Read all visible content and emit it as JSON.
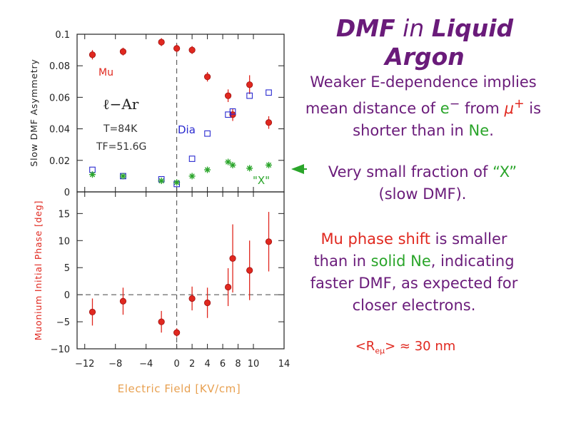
{
  "title": {
    "part1": "DMF",
    "part2": " in ",
    "part3": "Liquid Argon"
  },
  "text_blocks": {
    "weaker": {
      "a": "Weaker ",
      "b": "E",
      "c": "-dependence implies mean distance of ",
      "d": "e",
      "d_sup": "−",
      "e": " from ",
      "f": "μ",
      "f_sup": "+",
      "g": " is shorter than in ",
      "h": "Ne",
      "i": "."
    },
    "fraction": {
      "a": "Very small fraction of ",
      "b": "“X”",
      "c": " (slow DMF)."
    },
    "phase": {
      "a": "Mu phase shift",
      "b": " is smaller than in ",
      "c": "solid Ne",
      "d": ", indicating faster DMF, as expected for closer electrons."
    },
    "radius": {
      "a": "<R",
      "sub": "eμ",
      "b": "> ≈ 30 nm"
    }
  },
  "colors": {
    "purple": "#6a1b7a",
    "red": "#e0281f",
    "green": "#2aa52a",
    "blue": "#2b2bd0",
    "orange": "#e8a050",
    "axis": "#222222"
  },
  "chart_data": [
    {
      "type": "scatter",
      "ylabel": "Slow DMF Asymmetry",
      "ylim": [
        0,
        0.1
      ],
      "y_ticks": [
        0,
        0.02,
        0.04,
        0.06,
        0.08,
        0.1
      ],
      "y_tick_labels": [
        "0",
        "0.02",
        "0.04",
        "0.06",
        "0.08",
        "0.1"
      ],
      "annotations": [
        "ℓ−Ar",
        "T=84K",
        "TF=51.6G"
      ],
      "series": [
        {
          "name": "Mu",
          "marker": "filled-circle",
          "color": "#e0281f",
          "x": [
            -11,
            -7,
            -2,
            0,
            2,
            4,
            6.7,
            7.3,
            9.5,
            12
          ],
          "y": [
            0.087,
            0.089,
            0.095,
            0.091,
            0.09,
            0.073,
            0.061,
            0.049,
            0.068,
            0.044
          ],
          "err": [
            0.003,
            0.0025,
            0.0025,
            0.0025,
            0.0025,
            0.003,
            0.004,
            0.004,
            0.006,
            0.004
          ]
        },
        {
          "name": "Dia",
          "marker": "open-square",
          "color": "#2b2bd0",
          "x": [
            -11,
            -7,
            -2,
            0,
            2,
            4,
            6.7,
            7.3,
            9.5,
            12
          ],
          "y": [
            0.014,
            0.01,
            0.008,
            0.005,
            0.021,
            0.037,
            0.049,
            0.051,
            0.061,
            0.063
          ],
          "err": [
            0,
            0,
            0,
            0,
            0,
            0,
            0,
            0,
            0,
            0
          ]
        },
        {
          "name": "\"X\"",
          "marker": "star",
          "color": "#2aa52a",
          "x": [
            -11,
            -7,
            -2,
            0,
            2,
            4,
            6.7,
            7.3,
            9.5,
            12
          ],
          "y": [
            0.011,
            0.01,
            0.007,
            0.006,
            0.01,
            0.014,
            0.019,
            0.017,
            0.015,
            0.017
          ],
          "err": [
            0,
            0,
            0,
            0,
            0,
            0,
            0,
            0,
            0,
            0
          ]
        }
      ]
    },
    {
      "type": "scatter",
      "xlabel": "Electric Field [KV/cm]",
      "ylabel": "Muonium Initial Phase [deg]",
      "xlim": [
        -13,
        14
      ],
      "ylim": [
        -10,
        19
      ],
      "x_ticks": [
        -12,
        -8,
        -4,
        0,
        2,
        4,
        6,
        8,
        10,
        14
      ],
      "x_tick_labels": [
        "−12",
        "−8",
        "−4",
        "0",
        "2",
        "4",
        "6",
        "8",
        "10",
        "14"
      ],
      "y_ticks": [
        -10,
        -5,
        0,
        5,
        10,
        15
      ],
      "y_tick_labels": [
        "−10",
        "−5",
        "0",
        "5",
        "10",
        "15"
      ],
      "series": [
        {
          "marker": "filled-circle",
          "color": "#e0281f",
          "x": [
            -11,
            -7,
            -2,
            0,
            2,
            4,
            6.7,
            7.3,
            9.5,
            12
          ],
          "y": [
            -3.2,
            -1.2,
            -5,
            -7,
            -0.7,
            -1.5,
            1.4,
            6.7,
            4.5,
            9.8
          ],
          "err": [
            2.5,
            2.5,
            2,
            0.8,
            2.2,
            2.8,
            3.5,
            6.3,
            5.5,
            5.5
          ]
        }
      ]
    }
  ]
}
